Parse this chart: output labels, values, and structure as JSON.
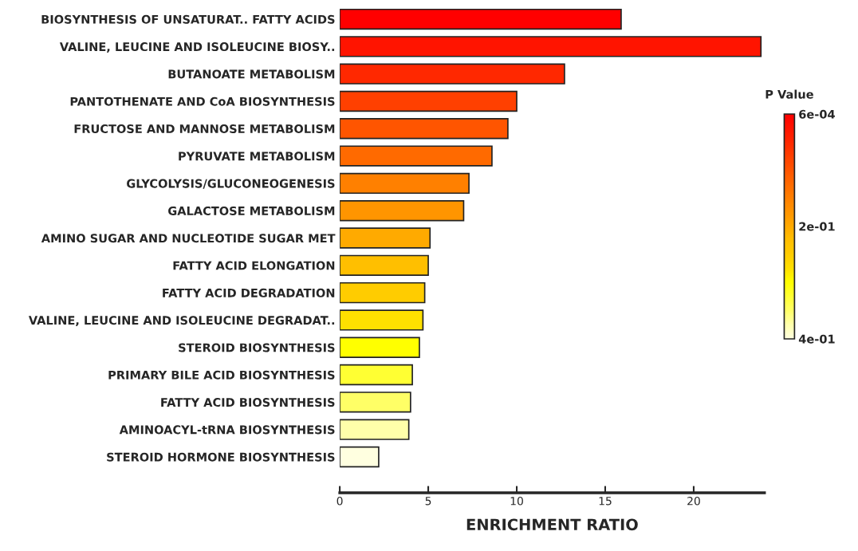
{
  "chart_data": {
    "type": "bar",
    "orientation": "horizontal",
    "categories": [
      "BIOSYNTHESIS OF UNSATURAT.. FATTY ACIDS",
      "VALINE, LEUCINE AND ISOLEUCINE BIOSY..",
      "BUTANOATE METABOLISM",
      "PANTOTHENATE AND CoA BIOSYNTHESIS",
      "FRUCTOSE AND MANNOSE METABOLISM",
      "PYRUVATE METABOLISM",
      "GLYCOLYSIS/GLUCONEOGENESIS",
      "GALACTOSE METABOLISM",
      "AMINO SUGAR AND NUCLEOTIDE SUGAR MET",
      "FATTY ACID ELONGATION",
      "FATTY ACID DEGRADATION",
      "VALINE, LEUCINE AND ISOLEUCINE DEGRADAT..",
      "STEROID BIOSYNTHESIS",
      "PRIMARY BILE ACID BIOSYNTHESIS",
      "FATTY ACID BIOSYNTHESIS",
      "AMINOACYL-tRNA BIOSYNTHESIS",
      "STEROID HORMONE BIOSYNTHESIS"
    ],
    "values": [
      15.9,
      23.8,
      12.7,
      10.0,
      9.5,
      8.6,
      7.3,
      7.0,
      5.1,
      5.0,
      4.8,
      4.7,
      4.5,
      4.1,
      4.0,
      3.9,
      2.2
    ],
    "colors": [
      "#ff0000",
      "#ff1400",
      "#ff2800",
      "#ff4000",
      "#ff5500",
      "#ff6a00",
      "#ff8000",
      "#ff9500",
      "#ffaa00",
      "#ffbf00",
      "#ffcc00",
      "#ffe000",
      "#ffff00",
      "#ffff33",
      "#ffff66",
      "#ffffaa",
      "#ffffe0"
    ],
    "xlabel": "ENRICHMENT RATIO",
    "xlim": [
      0,
      24
    ],
    "xticks": [
      0,
      5,
      10,
      15,
      20
    ],
    "clabel": "P Value",
    "clim": [
      0.4,
      0.0006
    ],
    "cticks": [
      {
        "value": 0.0006,
        "label": "6e-04"
      },
      {
        "value": 0.2,
        "label": "2e-01"
      },
      {
        "value": 0.4,
        "label": "4e-01"
      }
    ],
    "grid": false,
    "legend": false
  }
}
